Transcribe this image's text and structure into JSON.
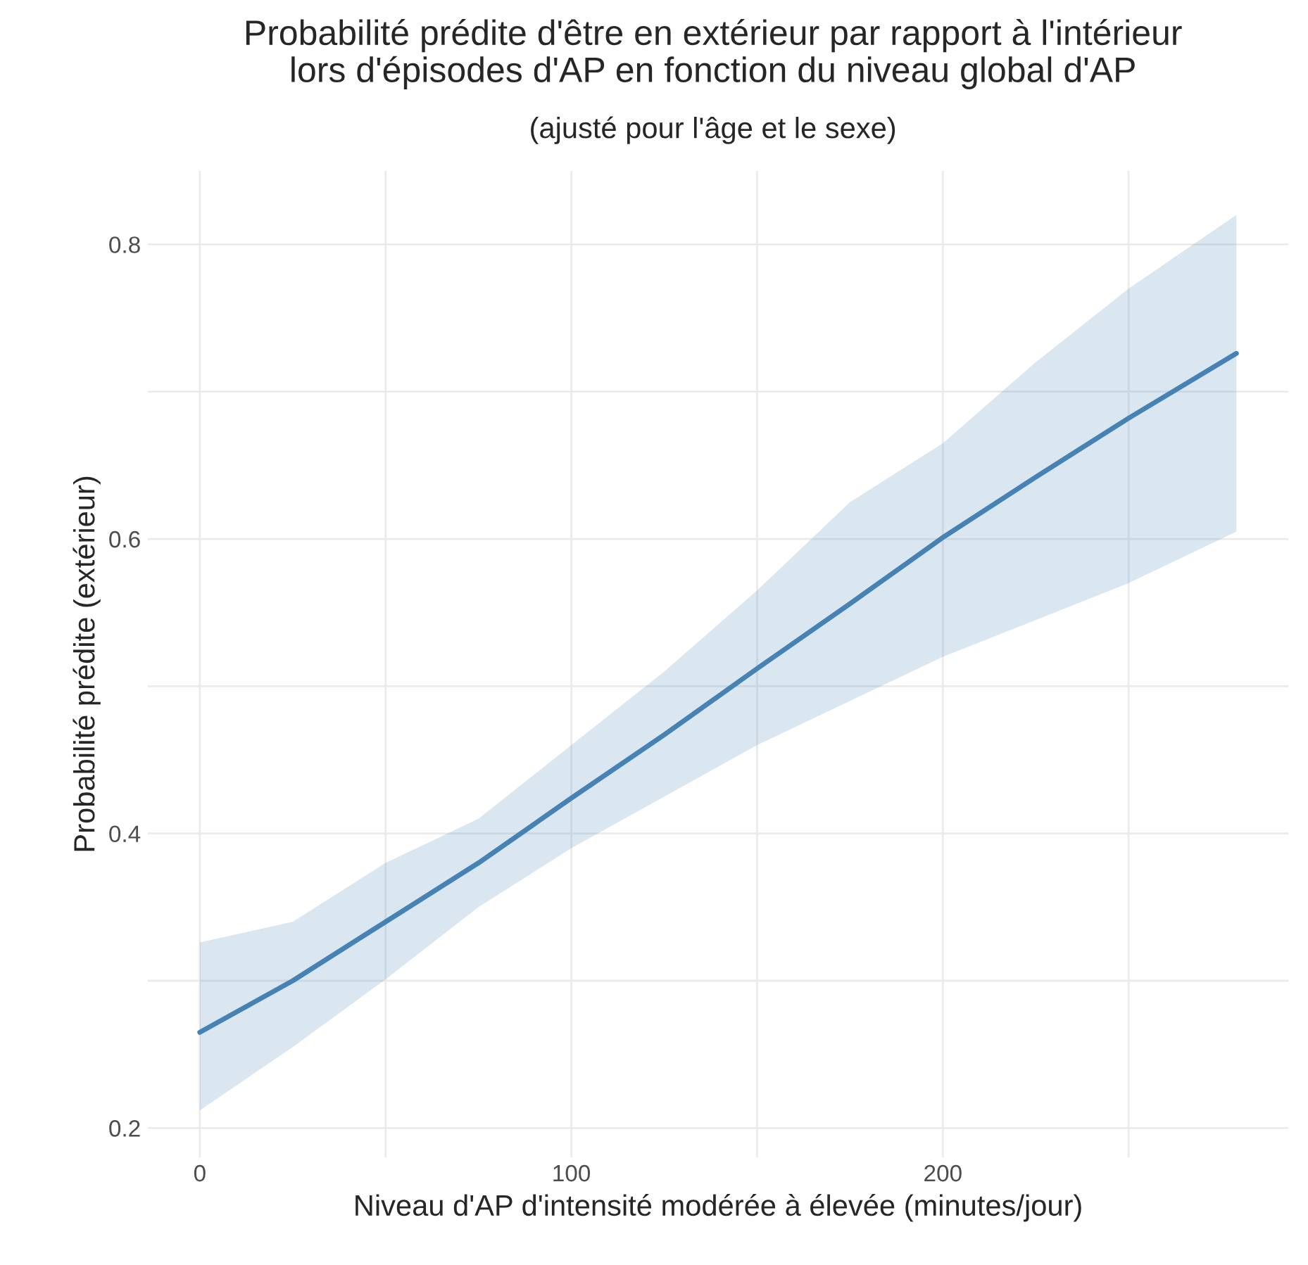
{
  "chart_data": {
    "type": "line",
    "title": "Probabilité prédite d'être en extérieur par rapport à l'intérieur\nlors d'épisodes d'AP en fonction du niveau global d'AP",
    "subtitle": "(ajusté pour l'âge et le sexe)",
    "xlabel": "Niveau d'AP d'intensité modérée à élevée (minutes/jour)",
    "ylabel": "Probabilité prédite (extérieur)",
    "series": [
      {
        "color": "#4682b4",
        "x": [
          0,
          25,
          50,
          75,
          100,
          125,
          150,
          175,
          200,
          225,
          250,
          279
        ],
        "values": [
          0.265,
          0.3,
          0.34,
          0.38,
          0.424,
          0.467,
          0.512,
          0.556,
          0.601,
          0.642,
          0.682,
          0.726
        ],
        "lower": [
          0.212,
          0.255,
          0.301,
          0.35,
          0.39,
          0.425,
          0.46,
          0.49,
          0.52,
          0.545,
          0.57,
          0.605
        ],
        "upper": [
          0.326,
          0.34,
          0.38,
          0.41,
          0.46,
          0.51,
          0.565,
          0.625,
          0.665,
          0.72,
          0.77,
          0.82
        ]
      }
    ],
    "xlim": [
      -14,
      293
    ],
    "ylim": [
      0.18,
      0.85
    ],
    "xticks": [
      0,
      {
        "value": 50,
        "label": null
      },
      100,
      {
        "value": 150,
        "label": null
      },
      200,
      {
        "value": 250,
        "label": null
      }
    ],
    "yticks": [
      0.2,
      {
        "value": 0.3,
        "label": null
      },
      0.4,
      {
        "value": 0.5,
        "label": null
      },
      0.6,
      {
        "value": 0.7,
        "label": null
      },
      0.8
    ],
    "grid": true,
    "line_style": "solid",
    "marker": "none"
  }
}
